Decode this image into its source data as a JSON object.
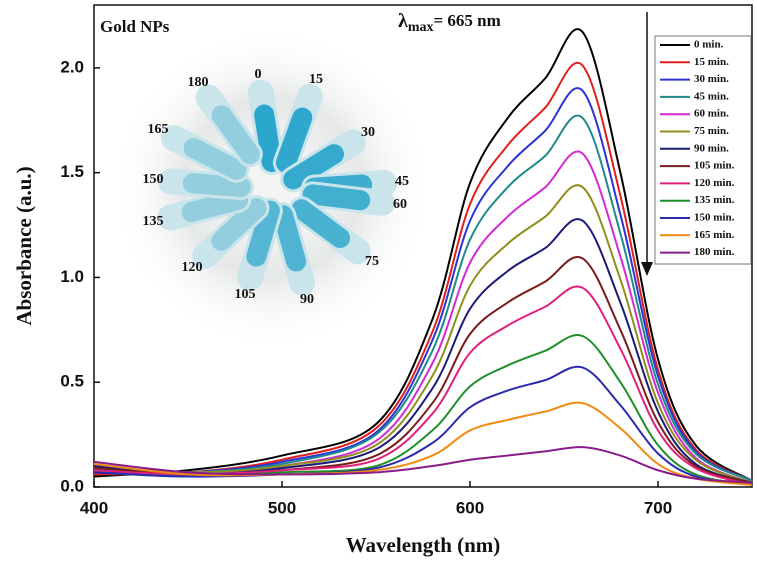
{
  "chart_data": {
    "type": "line",
    "xlabel": "Wavelength (nm)",
    "ylabel": "Absorbance (a.u.)",
    "annotations": {
      "sample": "Gold NPs",
      "lambda": "λ",
      "subscript": "max",
      "peak": "= 665 nm"
    },
    "inset_labels": [
      "0",
      "15",
      "30",
      "45",
      "60",
      "75",
      "90",
      "105",
      "120",
      "135",
      "150",
      "165",
      "180"
    ],
    "x": [
      400,
      450,
      500,
      550,
      580,
      600,
      620,
      640,
      660,
      680,
      700,
      720,
      750
    ],
    "xlim": [
      400,
      750
    ],
    "xticks": [
      400,
      500,
      600,
      700
    ],
    "ylim": [
      0,
      2.3
    ],
    "yticks": [
      {
        "value": 0,
        "label": "0.0"
      },
      0.5,
      {
        "value": 1,
        "label": "1.0"
      },
      1.5,
      {
        "value": 2,
        "label": "2.0"
      }
    ],
    "legend": "top-right",
    "series": [
      {
        "name": "0 min.",
        "color": "#000000",
        "values": [
          0.05,
          0.08,
          0.15,
          0.3,
          0.8,
          1.45,
          1.76,
          1.95,
          2.17,
          1.5,
          0.61,
          0.2,
          0.03
        ]
      },
      {
        "name": "15 min.",
        "color": "#e0201c",
        "values": [
          0.06,
          0.07,
          0.13,
          0.28,
          0.74,
          1.35,
          1.63,
          1.81,
          2.01,
          1.39,
          0.56,
          0.18,
          0.03
        ]
      },
      {
        "name": "30 min.",
        "color": "#2b35d4",
        "values": [
          0.07,
          0.07,
          0.12,
          0.26,
          0.7,
          1.27,
          1.53,
          1.7,
          1.89,
          1.3,
          0.53,
          0.17,
          0.03
        ]
      },
      {
        "name": "45 min.",
        "color": "#1f8a8a",
        "values": [
          0.08,
          0.07,
          0.11,
          0.25,
          0.65,
          1.18,
          1.43,
          1.58,
          1.76,
          1.21,
          0.49,
          0.16,
          0.03
        ]
      },
      {
        "name": "60 min.",
        "color": "#d42ad4",
        "values": [
          0.09,
          0.07,
          0.1,
          0.22,
          0.59,
          1.07,
          1.29,
          1.43,
          1.59,
          1.1,
          0.45,
          0.14,
          0.02
        ]
      },
      {
        "name": "75 min.",
        "color": "#8f8f1c",
        "values": [
          0.1,
          0.07,
          0.1,
          0.2,
          0.53,
          0.96,
          1.16,
          1.29,
          1.43,
          0.99,
          0.4,
          0.13,
          0.02
        ]
      },
      {
        "name": "90 min.",
        "color": "#1c1c78",
        "values": [
          0.1,
          0.06,
          0.09,
          0.18,
          0.47,
          0.85,
          1.03,
          1.14,
          1.27,
          0.88,
          0.36,
          0.11,
          0.02
        ]
      },
      {
        "name": "105 min.",
        "color": "#7a1c1c",
        "values": [
          0.09,
          0.06,
          0.08,
          0.15,
          0.4,
          0.73,
          0.88,
          0.98,
          1.09,
          0.75,
          0.31,
          0.1,
          0.02
        ]
      },
      {
        "name": "120 min.",
        "color": "#e0207a",
        "values": [
          0.08,
          0.06,
          0.08,
          0.13,
          0.35,
          0.64,
          0.77,
          0.86,
          0.95,
          0.66,
          0.27,
          0.09,
          0.01
        ]
      },
      {
        "name": "135 min.",
        "color": "#1f8f2a",
        "values": [
          0.07,
          0.05,
          0.07,
          0.1,
          0.27,
          0.48,
          0.58,
          0.65,
          0.72,
          0.5,
          0.2,
          0.06,
          0.01
        ]
      },
      {
        "name": "150 min.",
        "color": "#2a2ab0",
        "values": [
          0.07,
          0.05,
          0.06,
          0.09,
          0.21,
          0.38,
          0.46,
          0.51,
          0.57,
          0.39,
          0.16,
          0.05,
          0.01
        ]
      },
      {
        "name": "165 min.",
        "color": "#f08a10",
        "values": [
          0.11,
          0.06,
          0.06,
          0.08,
          0.15,
          0.27,
          0.32,
          0.36,
          0.4,
          0.28,
          0.11,
          0.04,
          0.01
        ]
      },
      {
        "name": "180 min.",
        "color": "#8a1c8a",
        "values": [
          0.12,
          0.07,
          0.06,
          0.07,
          0.1,
          0.13,
          0.15,
          0.17,
          0.19,
          0.15,
          0.08,
          0.04,
          0.02
        ]
      }
    ]
  }
}
